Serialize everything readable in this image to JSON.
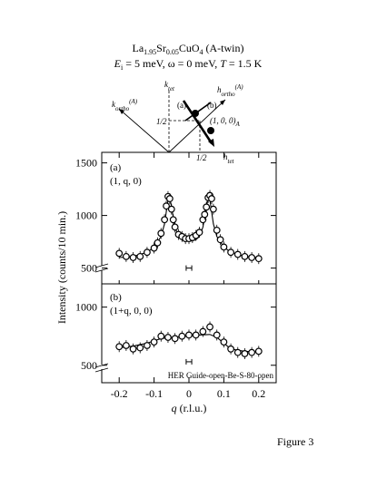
{
  "header": {
    "title_parts": [
      "La",
      "1.95",
      "Sr",
      "0.05",
      "CuO",
      "4",
      " (A-twin)"
    ],
    "cond_Ei_sym": "E",
    "cond_Ei_sub": "i",
    "cond_Ei_val": " = 5 meV, ω = 0 meV, ",
    "cond_T_sym": "T",
    "cond_T_val": " = 1.5 K"
  },
  "inset": {
    "k_tet": "k",
    "k_tet_sub": "tet",
    "h_tet": "h",
    "h_tet_sub": "tet",
    "k_ortho": "k",
    "k_ortho_sub": "ortho",
    "k_ortho_sup": "(A)",
    "h_ortho": "h",
    "h_ortho_sub": "ortho",
    "h_ortho_sup": "(A)",
    "label_a": "(a)",
    "label_b": "(b)",
    "half_y": "1/2",
    "half_x": "1/2",
    "point": "(1, 0, 0)",
    "point_sub": "A"
  },
  "panel_a": {
    "label": "(a)",
    "scan": "(1, q, 0)"
  },
  "panel_b": {
    "label": "(b)",
    "scan": "(1+q, 0, 0)"
  },
  "ylabel": "Intensity (counts/10 min.)",
  "xlabel_sym": "q",
  "xlabel_unit": " (r.l.u.)",
  "note": "HER Guide-open-Be-S-80-open",
  "figure_label": "Figure 3",
  "chart_data": [
    {
      "type": "scatter",
      "panel": "(a)",
      "xlim": [
        -0.25,
        0.25
      ],
      "ylim": [
        350,
        1600
      ],
      "yticks": [
        500,
        1000,
        1500
      ],
      "xticks": [
        -0.2,
        -0.1,
        0,
        0.1,
        0.2
      ],
      "x": [
        -0.2,
        -0.18,
        -0.16,
        -0.14,
        -0.12,
        -0.1,
        -0.09,
        -0.08,
        -0.07,
        -0.065,
        -0.06,
        -0.055,
        -0.05,
        -0.045,
        -0.04,
        -0.03,
        -0.02,
        -0.01,
        0.0,
        0.01,
        0.02,
        0.03,
        0.04,
        0.045,
        0.05,
        0.055,
        0.06,
        0.065,
        0.07,
        0.08,
        0.09,
        0.1,
        0.12,
        0.14,
        0.16,
        0.18,
        0.2
      ],
      "y": [
        640,
        610,
        600,
        610,
        650,
        690,
        740,
        830,
        960,
        1090,
        1180,
        1160,
        1060,
        960,
        890,
        820,
        800,
        780,
        780,
        790,
        810,
        840,
        960,
        1010,
        1080,
        1170,
        1190,
        1160,
        1060,
        860,
        770,
        700,
        650,
        630,
        610,
        600,
        590
      ],
      "fit_x": [
        -0.2,
        -0.16,
        -0.12,
        -0.1,
        -0.08,
        -0.07,
        -0.06,
        -0.055,
        -0.05,
        -0.04,
        -0.03,
        -0.02,
        -0.01,
        0.0,
        0.01,
        0.02,
        0.03,
        0.04,
        0.05,
        0.055,
        0.06,
        0.07,
        0.08,
        0.1,
        0.12,
        0.16,
        0.2
      ],
      "fit_y": [
        600,
        610,
        650,
        700,
        800,
        920,
        1150,
        1170,
        1080,
        890,
        800,
        770,
        760,
        755,
        760,
        770,
        800,
        890,
        1080,
        1170,
        1150,
        920,
        800,
        700,
        650,
        610,
        600
      ],
      "resolution_bar": {
        "x": 0.0,
        "y": 500,
        "halfwidth": 0.008
      }
    },
    {
      "type": "scatter",
      "panel": "(b)",
      "xlim": [
        -0.25,
        0.25
      ],
      "ylim": [
        350,
        1200
      ],
      "yticks": [
        500,
        1000
      ],
      "xticks": [
        -0.2,
        -0.1,
        0,
        0.1,
        0.2
      ],
      "x": [
        -0.2,
        -0.18,
        -0.16,
        -0.14,
        -0.12,
        -0.1,
        -0.08,
        -0.06,
        -0.04,
        -0.02,
        0.0,
        0.02,
        0.04,
        0.06,
        0.08,
        0.1,
        0.12,
        0.14,
        0.16,
        0.18,
        0.2
      ],
      "y": [
        660,
        670,
        640,
        650,
        670,
        700,
        750,
        740,
        730,
        750,
        760,
        760,
        790,
        830,
        760,
        700,
        640,
        610,
        600,
        610,
        620
      ],
      "fit_x": [
        -0.2,
        -0.16,
        -0.12,
        -0.08,
        -0.05,
        -0.02,
        0.0,
        0.03,
        0.06,
        0.08,
        0.1,
        0.12,
        0.16,
        0.2
      ],
      "fit_y": [
        650,
        665,
        690,
        730,
        740,
        745,
        750,
        760,
        765,
        740,
        690,
        640,
        620,
        615
      ],
      "resolution_bar": {
        "x": 0.0,
        "y": 530,
        "halfwidth": 0.008
      }
    }
  ]
}
